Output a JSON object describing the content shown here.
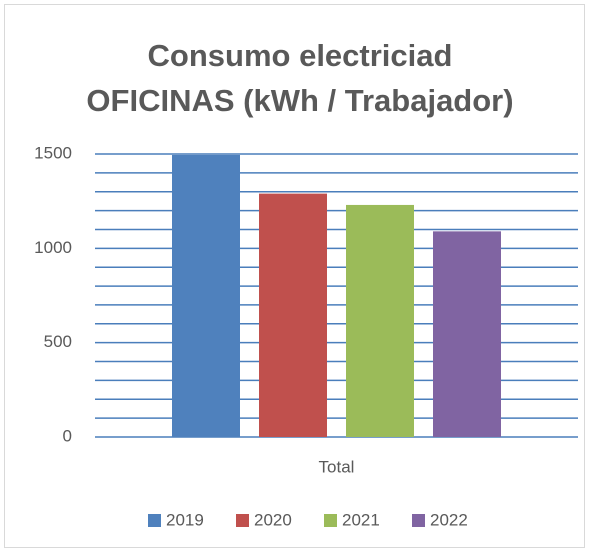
{
  "chart_data": {
    "type": "bar",
    "title": [
      "Consumo electriciad",
      "OFICINAS (kWh / Trabajador)"
    ],
    "categories": [
      "Total"
    ],
    "series": [
      {
        "name": "2019",
        "color": "#4f81bd",
        "values": [
          1495
        ]
      },
      {
        "name": "2020",
        "color": "#c0504d",
        "values": [
          1290
        ]
      },
      {
        "name": "2021",
        "color": "#9bbb59",
        "values": [
          1230
        ]
      },
      {
        "name": "2022",
        "color": "#8064a2",
        "values": [
          1090
        ]
      }
    ],
    "ylim": [
      0,
      1500
    ],
    "yticks": [
      0,
      500,
      1000,
      1500
    ],
    "grid": true,
    "grid_color": "#4a7ebb",
    "minor_yticks": [
      100,
      200,
      300,
      400,
      600,
      700,
      800,
      900,
      1100,
      1200,
      1300,
      1400
    ],
    "legend": "bottom"
  }
}
